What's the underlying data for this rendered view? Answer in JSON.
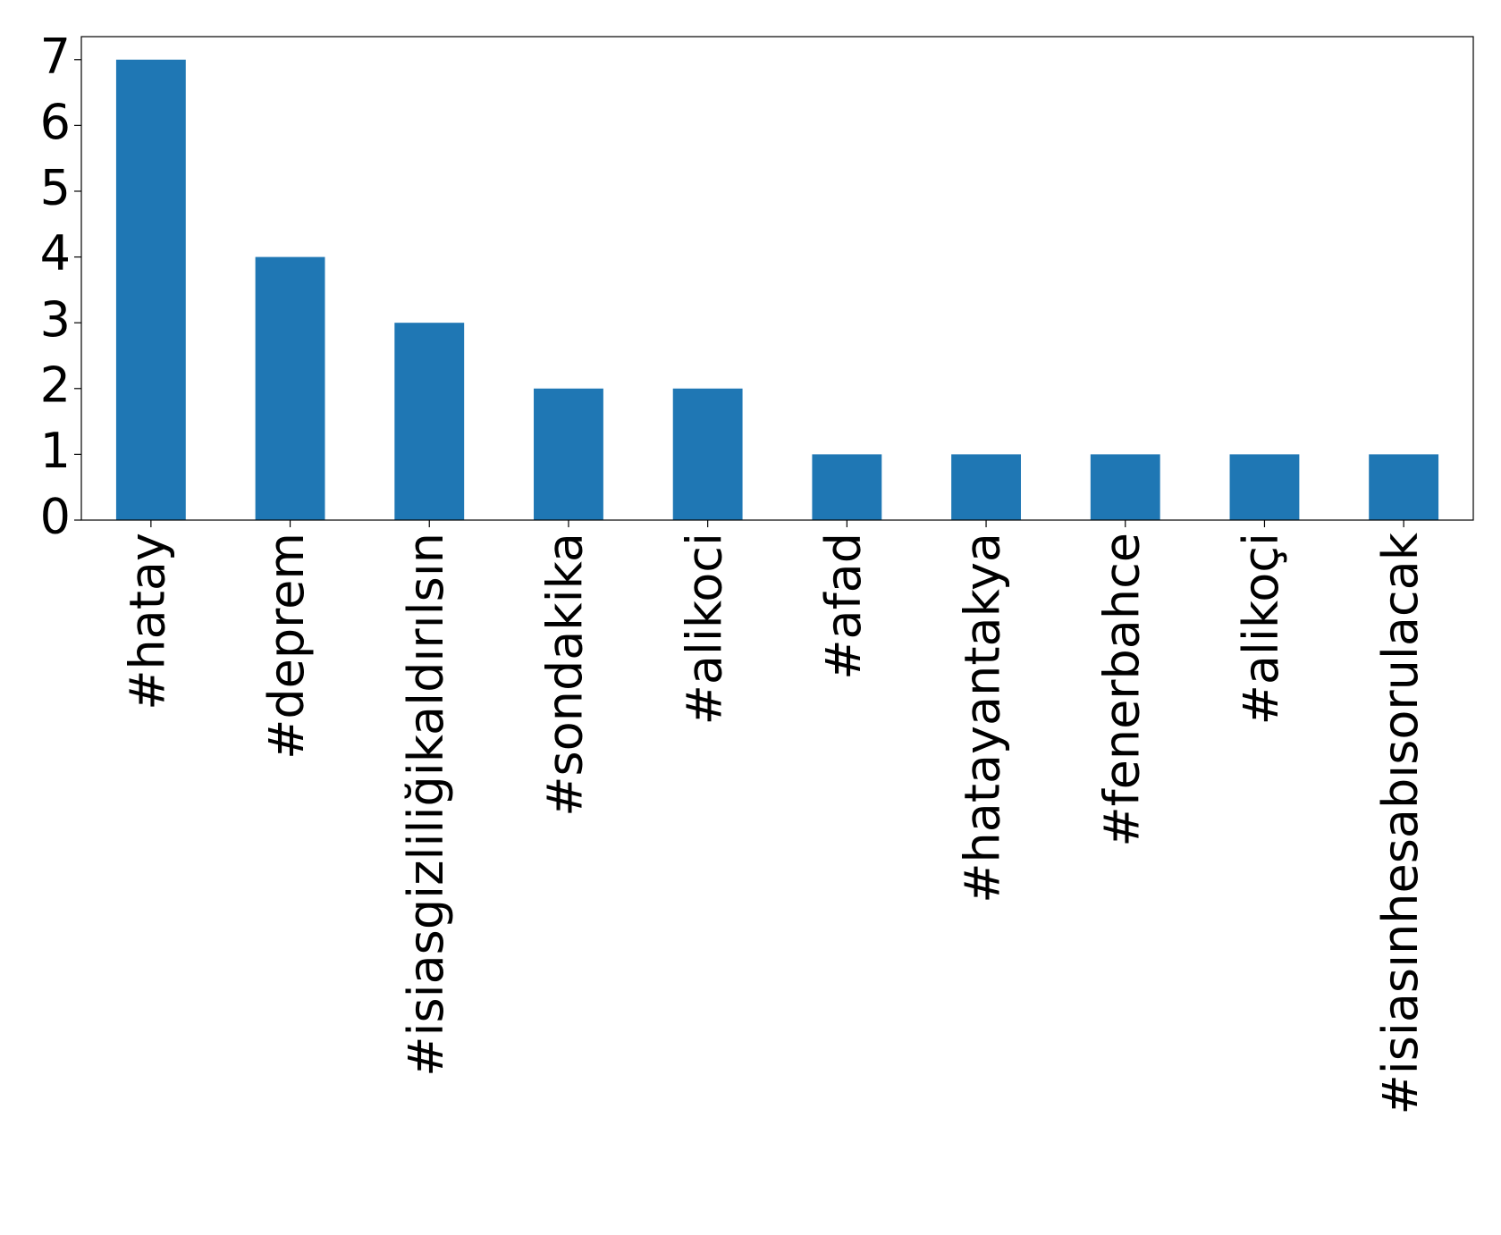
{
  "chart_data": {
    "type": "bar",
    "categories": [
      "#hatay",
      "#deprem",
      "#isiasgizliliğikaldırılsın",
      "#sondakika",
      "#alikoci",
      "#afad",
      "#hatayantakya",
      "#fenerbahce",
      "#alikoçi",
      "#isiasınhesabısorulacak"
    ],
    "values": [
      7,
      4,
      3,
      2,
      2,
      1,
      1,
      1,
      1,
      1
    ],
    "color": "#1f77b4",
    "ylim": [
      0,
      7.35
    ],
    "yticks": [
      0,
      1,
      2,
      3,
      4,
      5,
      6,
      7
    ],
    "grid": false
  }
}
